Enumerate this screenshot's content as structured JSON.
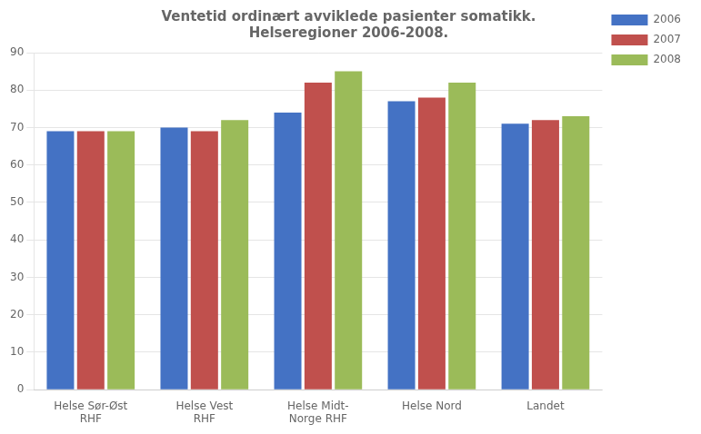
{
  "chart_data": {
    "type": "bar",
    "title": "Ventetid ordinært avviklede pasienter somatikk.\nHelseregioner 2006-2008.",
    "categories": [
      "Helse Sør-Øst\nRHF",
      "Helse Vest\nRHF",
      "Helse Midt-\nNorge RHF",
      "Helse Nord",
      "Landet"
    ],
    "series": [
      {
        "name": "2006",
        "color": "#4472C4",
        "values": [
          69,
          70,
          74,
          77,
          71
        ]
      },
      {
        "name": "2007",
        "color": "#C0504D",
        "values": [
          69,
          69,
          82,
          78,
          72
        ]
      },
      {
        "name": "2008",
        "color": "#9BBB59",
        "values": [
          69,
          72,
          85,
          82,
          73
        ]
      }
    ],
    "ylim": [
      0,
      90
    ],
    "yticks": [
      0,
      10,
      20,
      30,
      40,
      50,
      60,
      70,
      80,
      90
    ],
    "grid": true,
    "legend": "right"
  }
}
